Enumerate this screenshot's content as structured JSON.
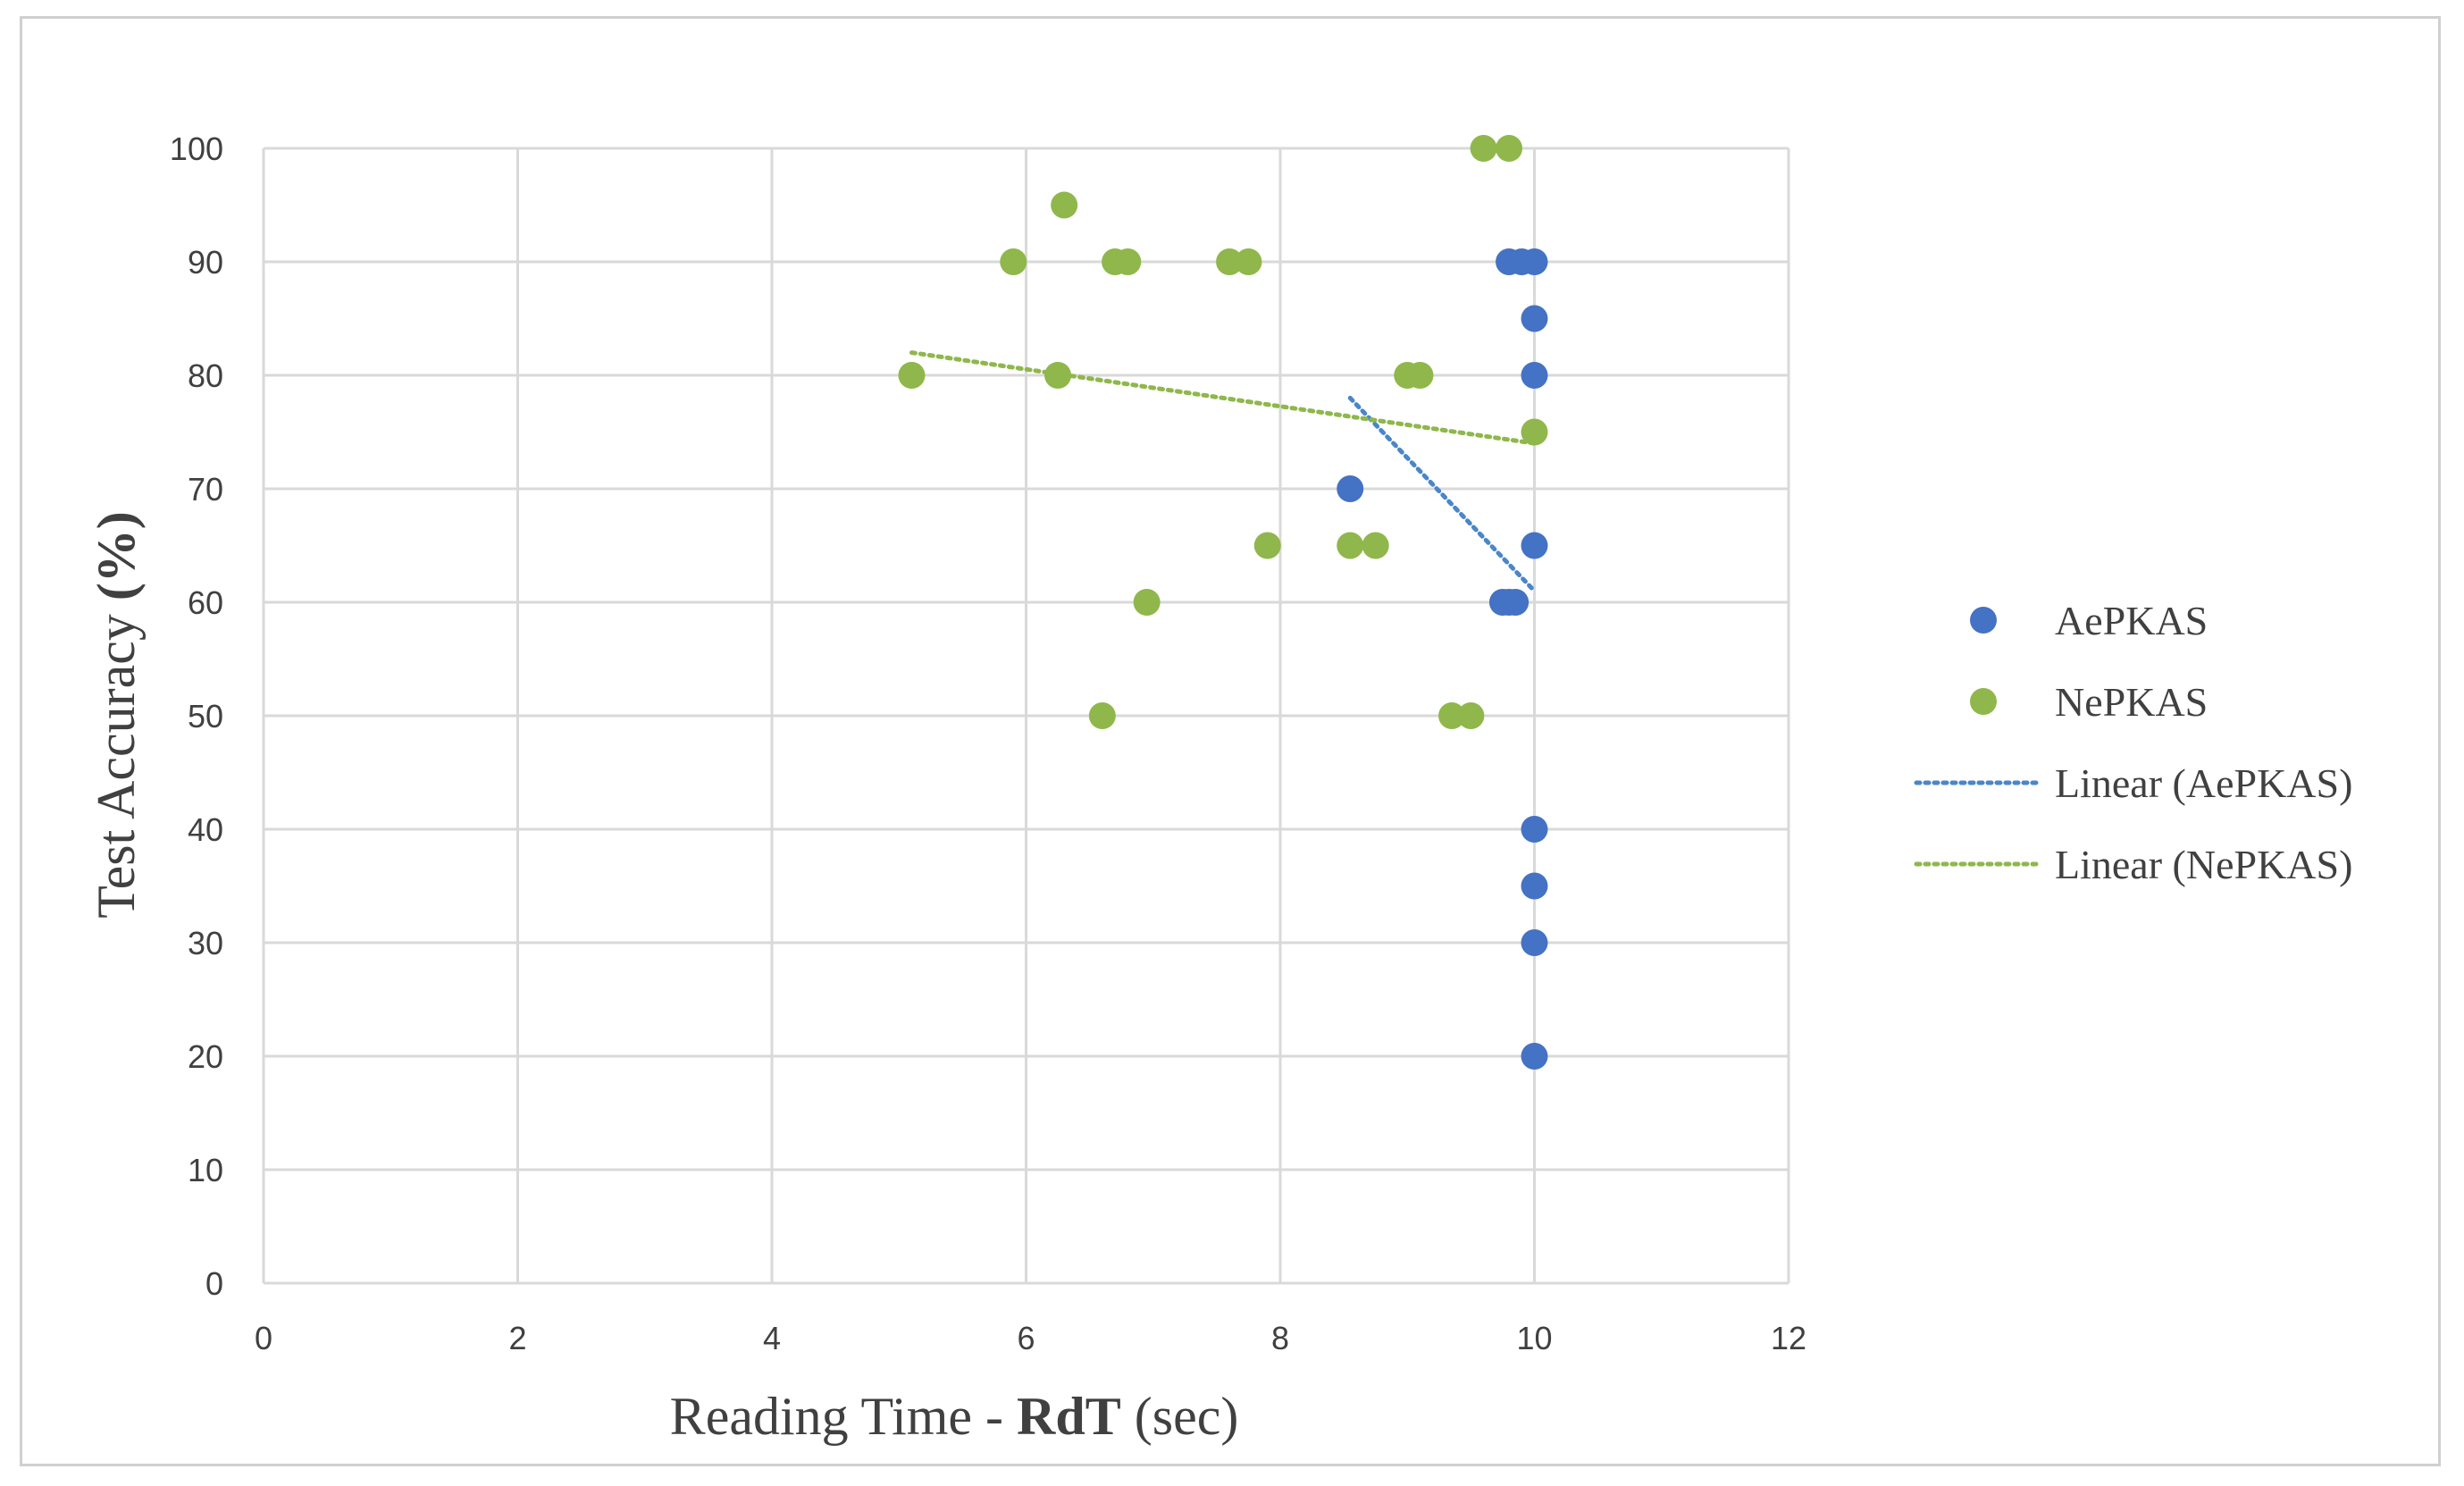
{
  "chart_data": {
    "type": "scatter",
    "xlabel": "Reading Time - RdT (sec)",
    "xlabel_parts": {
      "before": "Reading Time - ",
      "bold": "RdT",
      "after": " (sec)"
    },
    "ylabel": "Test Accuracy (%)",
    "ylabel_parts": {
      "before": "Test Accuracy ",
      "bold": "(%)"
    },
    "xlim": [
      0,
      12
    ],
    "ylim": [
      0,
      100
    ],
    "x_ticks": [
      "0",
      "2",
      "4",
      "6",
      "8",
      "10",
      "12"
    ],
    "y_ticks": [
      "0",
      "10",
      "20",
      "30",
      "40",
      "50",
      "60",
      "70",
      "80",
      "90",
      "100"
    ],
    "grid": true,
    "legend_position": "right",
    "series": [
      {
        "name": "AePKAS",
        "color": "#4472c4",
        "points": [
          {
            "x": 9.8,
            "y": 90
          },
          {
            "x": 9.9,
            "y": 90
          },
          {
            "x": 10.0,
            "y": 90
          },
          {
            "x": 10.0,
            "y": 85
          },
          {
            "x": 10.0,
            "y": 80
          },
          {
            "x": 8.55,
            "y": 70
          },
          {
            "x": 10.0,
            "y": 65
          },
          {
            "x": 9.75,
            "y": 60
          },
          {
            "x": 9.8,
            "y": 60
          },
          {
            "x": 9.85,
            "y": 60
          },
          {
            "x": 10.0,
            "y": 40
          },
          {
            "x": 10.0,
            "y": 35
          },
          {
            "x": 10.0,
            "y": 30
          },
          {
            "x": 10.0,
            "y": 20
          }
        ]
      },
      {
        "name": "NePKAS",
        "color": "#8fb74b",
        "points": [
          {
            "x": 9.6,
            "y": 100
          },
          {
            "x": 9.8,
            "y": 100
          },
          {
            "x": 6.3,
            "y": 95
          },
          {
            "x": 5.9,
            "y": 90
          },
          {
            "x": 6.7,
            "y": 90
          },
          {
            "x": 6.8,
            "y": 90
          },
          {
            "x": 7.6,
            "y": 90
          },
          {
            "x": 7.75,
            "y": 90
          },
          {
            "x": 5.1,
            "y": 80
          },
          {
            "x": 6.25,
            "y": 80
          },
          {
            "x": 9.0,
            "y": 80
          },
          {
            "x": 9.1,
            "y": 80
          },
          {
            "x": 10.0,
            "y": 75
          },
          {
            "x": 7.9,
            "y": 65
          },
          {
            "x": 8.55,
            "y": 65
          },
          {
            "x": 8.75,
            "y": 65
          },
          {
            "x": 6.95,
            "y": 60
          },
          {
            "x": 6.6,
            "y": 50
          },
          {
            "x": 9.35,
            "y": 50
          },
          {
            "x": 9.5,
            "y": 50
          }
        ]
      }
    ],
    "trendlines": [
      {
        "name": "Linear (AePKAS)",
        "color": "#4a86c8",
        "from": {
          "x": 8.55,
          "y": 78
        },
        "to": {
          "x": 10.0,
          "y": 61
        }
      },
      {
        "name": "Linear (NePKAS)",
        "color": "#8fb74b",
        "from": {
          "x": 5.1,
          "y": 82
        },
        "to": {
          "x": 10.0,
          "y": 74
        }
      }
    ]
  }
}
